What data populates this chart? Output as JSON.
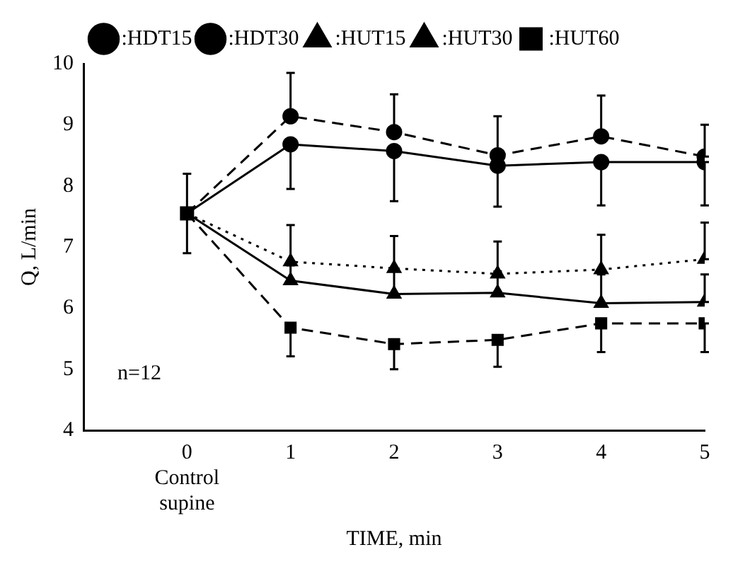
{
  "chart_data": {
    "type": "line",
    "xlabel": "TIME, min",
    "ylabel": "Q, L/min",
    "xlim": [
      -1,
      5
    ],
    "ylim": [
      4,
      10
    ],
    "xticks": [
      {
        "value": 0,
        "label": "0\nControl\nsupine"
      },
      1,
      2,
      3,
      4,
      5
    ],
    "yticks": [
      4,
      5,
      6,
      7,
      8,
      9,
      10
    ],
    "x": [
      0,
      1,
      2,
      3,
      4,
      5
    ],
    "legend": "top",
    "grid": false,
    "annotations": [
      "n=12"
    ],
    "series": [
      {
        "name": ":HDT15",
        "color": "#000000",
        "marker": "circle",
        "line_style": "solid",
        "values": [
          7.55,
          8.68,
          8.57,
          8.33,
          8.39,
          8.39
        ],
        "errors": [
          null,
          [
            7.95,
            8.68
          ],
          [
            7.75,
            8.57
          ],
          [
            7.66,
            8.33
          ],
          [
            7.68,
            8.39
          ],
          [
            7.68,
            8.39
          ]
        ]
      },
      {
        "name": ":HDT30",
        "color": "#000000",
        "marker": "circle",
        "line_style": "dashed",
        "values": [
          7.55,
          9.14,
          8.88,
          8.5,
          8.81,
          8.48
        ],
        "errors": [
          null,
          [
            9.14,
            9.85
          ],
          [
            8.88,
            9.5
          ],
          [
            8.5,
            9.14
          ],
          [
            8.81,
            9.48
          ],
          [
            8.48,
            9.0
          ]
        ]
      },
      {
        "name": ":HUT15",
        "color": "#000000",
        "marker": "triangle",
        "line_style": "dotted",
        "values": [
          7.55,
          6.76,
          6.65,
          6.56,
          6.63,
          6.8
        ],
        "errors": [
          null,
          [
            6.76,
            7.36
          ],
          [
            6.65,
            7.18
          ],
          [
            6.56,
            7.09
          ],
          [
            6.63,
            7.2
          ],
          [
            6.8,
            7.4
          ]
        ]
      },
      {
        "name": ":HUT30",
        "color": "#000000",
        "marker": "triangle",
        "line_style": "solid",
        "values": [
          7.55,
          6.45,
          6.23,
          6.25,
          6.08,
          6.1
        ],
        "errors": [
          null,
          [
            6.45,
            6.7
          ],
          [
            6.23,
            6.6
          ],
          [
            6.25,
            6.6
          ],
          [
            6.08,
            6.55
          ],
          [
            6.1,
            6.55
          ]
        ]
      },
      {
        "name": ":HUT60",
        "color": "#000000",
        "marker": "square",
        "line_style": "dashed",
        "values": [
          7.55,
          5.68,
          5.41,
          5.48,
          5.75,
          5.75
        ],
        "errors": [
          null,
          [
            5.21,
            5.68
          ],
          [
            5.0,
            5.41
          ],
          [
            5.04,
            5.48
          ],
          [
            5.28,
            5.75
          ],
          [
            5.28,
            5.75
          ]
        ]
      },
      {
        "type": "scatter",
        "color": "#000000",
        "marker": "square",
        "x": [
          0
        ],
        "values": [
          7.55
        ],
        "errors": [
          [
            6.9,
            8.2
          ]
        ]
      }
    ]
  }
}
